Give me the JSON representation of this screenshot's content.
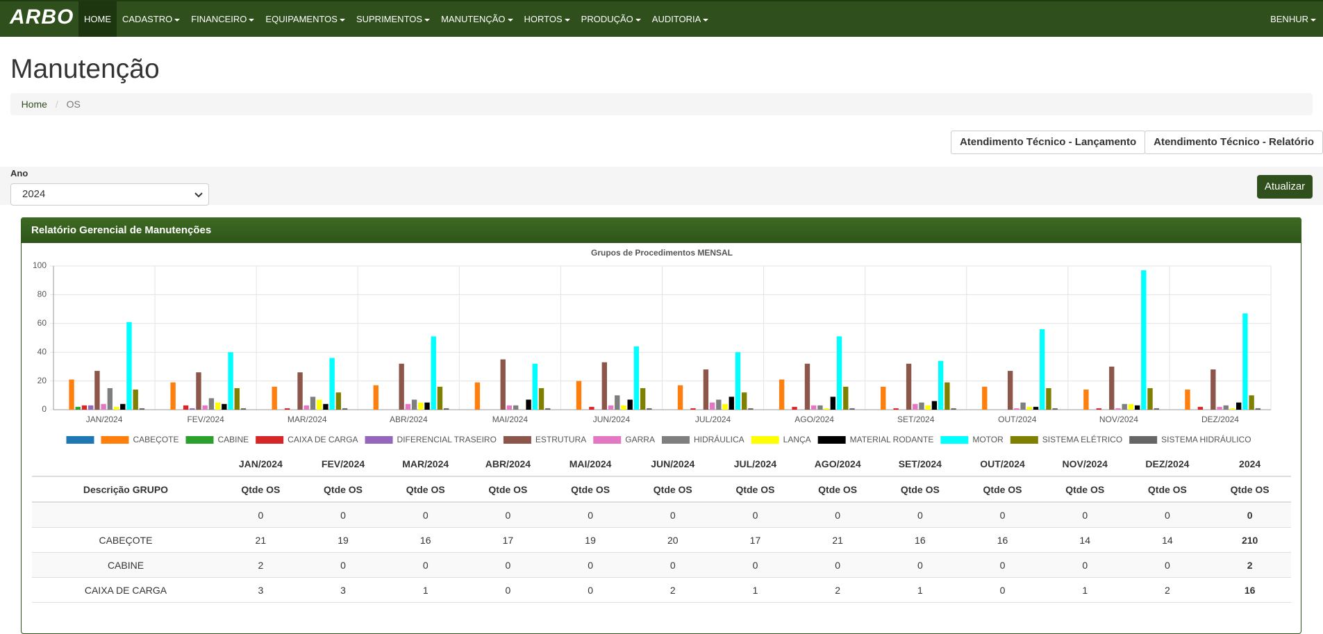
{
  "nav": {
    "logo": "ARBO",
    "items": [
      "HOME",
      "CADASTRO",
      "FINANCEIRO",
      "EQUIPAMENTOS",
      "SUPRIMENTOS",
      "MANUTENÇÃO",
      "HORTOS",
      "PRODUÇÃO",
      "AUDITORIA"
    ],
    "user": "BENHUR"
  },
  "header": {
    "title": "Manutenção",
    "breadcrumb": [
      "Home",
      "OS"
    ]
  },
  "buttons": [
    "Atendimento Técnico - Lançamento",
    "Atendimento Técnico - Relatório"
  ],
  "filter": {
    "label": "Ano",
    "value": "2024",
    "submit": "Atualizar"
  },
  "panel": {
    "title": "Relatório Gerencial de Manutenções"
  },
  "chart_data": {
    "type": "bar",
    "title": "Grupos de Procedimentos MENSAL",
    "categories": [
      "JAN/2024",
      "FEV/2024",
      "MAR/2024",
      "ABR/2024",
      "MAI/2024",
      "JUN/2024",
      "JUL/2024",
      "AGO/2024",
      "SET/2024",
      "OUT/2024",
      "NOV/2024",
      "DEZ/2024"
    ],
    "ylim": [
      0,
      100
    ],
    "yticks": [
      0,
      20,
      40,
      60,
      80,
      100
    ],
    "grid": true,
    "series": [
      {
        "name": null,
        "color": "#1f77b4",
        "values": [
          0,
          0,
          0,
          0,
          0,
          0,
          0,
          0,
          0,
          0,
          0,
          0
        ]
      },
      {
        "name": "CABEÇOTE",
        "color": "#ff7f0e",
        "values": [
          21,
          19,
          16,
          17,
          19,
          20,
          17,
          21,
          16,
          16,
          14,
          14
        ]
      },
      {
        "name": "CABINE",
        "color": "#2ca02c",
        "values": [
          2,
          0,
          0,
          0,
          0,
          0,
          0,
          0,
          0,
          0,
          0,
          0
        ]
      },
      {
        "name": "CAIXA DE CARGA",
        "color": "#d62728",
        "values": [
          3,
          3,
          1,
          0,
          0,
          2,
          1,
          2,
          1,
          0,
          1,
          2
        ]
      },
      {
        "name": "DIFERENCIAL TRASEIRO",
        "color": "#9467bd",
        "values": [
          3,
          1,
          0,
          0,
          0,
          0,
          0,
          0,
          0,
          0,
          0,
          0
        ]
      },
      {
        "name": "ESTRUTURA",
        "color": "#8c564b",
        "values": [
          27,
          26,
          26,
          32,
          35,
          33,
          28,
          32,
          32,
          27,
          30,
          28
        ]
      },
      {
        "name": "GARRA",
        "color": "#e377c2",
        "values": [
          4,
          3,
          3,
          4,
          3,
          3,
          5,
          3,
          4,
          1,
          1,
          2
        ]
      },
      {
        "name": "HIDRÁULICA",
        "color": "#7f7f7f",
        "values": [
          15,
          8,
          9,
          7,
          3,
          10,
          7,
          3,
          5,
          5,
          4,
          3
        ]
      },
      {
        "name": "LANÇA",
        "color": "#ffff00",
        "values": [
          2,
          5,
          7,
          5,
          0,
          3,
          4,
          1,
          3,
          2,
          4,
          1
        ]
      },
      {
        "name": "MATERIAL RODANTE",
        "color": "#000000",
        "values": [
          4,
          4,
          4,
          5,
          7,
          7,
          9,
          9,
          6,
          2,
          3,
          5
        ]
      },
      {
        "name": "MOTOR",
        "color": "#00ffff",
        "values": [
          61,
          40,
          36,
          51,
          32,
          44,
          40,
          51,
          34,
          56,
          97,
          67
        ]
      },
      {
        "name": "SISTEMA ELÉTRICO",
        "color": "#808000",
        "values": [
          14,
          15,
          12,
          16,
          15,
          15,
          12,
          16,
          19,
          15,
          15,
          10
        ]
      },
      {
        "name": "SISTEMA HIDRÁULICO",
        "color": "#666666",
        "values": [
          1,
          1,
          1,
          1,
          1,
          1,
          1,
          1,
          1,
          1,
          1,
          1
        ]
      }
    ]
  },
  "table": {
    "year_header": "2024",
    "group_header": "Descrição GRUPO",
    "qty_header": "Qtde OS",
    "rows": [
      {
        "group": null,
        "values": [
          0,
          0,
          0,
          0,
          0,
          0,
          0,
          0,
          0,
          0,
          0,
          0
        ],
        "total": 0
      },
      {
        "group": "CABEÇOTE",
        "values": [
          21,
          19,
          16,
          17,
          19,
          20,
          17,
          21,
          16,
          16,
          14,
          14
        ],
        "total": 210
      },
      {
        "group": "CABINE",
        "values": [
          2,
          0,
          0,
          0,
          0,
          0,
          0,
          0,
          0,
          0,
          0,
          0
        ],
        "total": 2
      },
      {
        "group": "CAIXA DE CARGA",
        "values": [
          3,
          3,
          1,
          0,
          0,
          2,
          1,
          2,
          1,
          0,
          1,
          2
        ],
        "total": 16
      }
    ]
  }
}
